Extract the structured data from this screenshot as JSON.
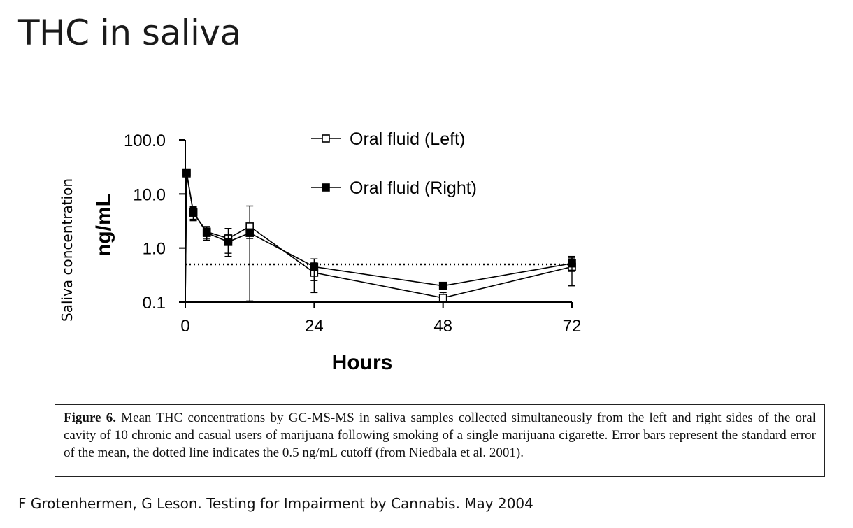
{
  "slide_title": "THC in saliva",
  "side_label": "Saliva concentration",
  "caption": {
    "label": "Figure 6.",
    "text": "Mean THC concentrations by GC-MS-MS in saliva samples collected simultaneously from the left and right sides of the oral cavity of 10 chronic and casual users of marijuana following smoking of a single marijuana cigarette. Error bars represent the standard error of the mean, the dotted line indicates the 0.5 ng/mL cutoff (from Niedbala et al. 2001)."
  },
  "citation": "F Grotenhermen, G Leson. Testing for Impairment by Cannabis. May 2004",
  "chart_data": {
    "type": "line",
    "xlabel": "Hours",
    "ylabel": "ng/mL",
    "y_scale": "log",
    "ylim": [
      0.1,
      100
    ],
    "xlim": [
      0,
      72
    ],
    "x_ticks": [
      "0",
      "24",
      "48",
      "72"
    ],
    "y_ticks": [
      "100.0",
      "10.0",
      "1.0",
      "0.1"
    ],
    "cutoff_line": 0.5,
    "legend_position": "top-center",
    "series": [
      {
        "name": "Oral fluid (Left)",
        "marker": "open-square",
        "points": [
          {
            "x": 0.25,
            "y": 24,
            "err": 0
          },
          {
            "x": 1.5,
            "y": 4.5,
            "err": 1.3
          },
          {
            "x": 4,
            "y": 2.0,
            "err": 0.5
          },
          {
            "x": 8,
            "y": 1.5,
            "err": 0.8
          },
          {
            "x": 12,
            "y": 2.5,
            "err": 3.5
          },
          {
            "x": 24,
            "y": 0.35,
            "err": 0.2
          },
          {
            "x": 48,
            "y": 0.12,
            "err": 0.03
          },
          {
            "x": 72,
            "y": 0.45,
            "err": 0.25
          }
        ]
      },
      {
        "name": "Oral fluid (Right)",
        "marker": "filled-square",
        "points": [
          {
            "x": 0.25,
            "y": 25,
            "err": 0
          },
          {
            "x": 1.5,
            "y": 4.6,
            "err": 1.2
          },
          {
            "x": 4,
            "y": 1.9,
            "err": 0.5
          },
          {
            "x": 8,
            "y": 1.3,
            "err": 0.5
          },
          {
            "x": 12,
            "y": 1.9,
            "err": 0.4
          },
          {
            "x": 24,
            "y": 0.45,
            "err": 0.2
          },
          {
            "x": 48,
            "y": 0.2,
            "err": 0.03
          },
          {
            "x": 72,
            "y": 0.52,
            "err": 0.15
          }
        ]
      }
    ]
  }
}
